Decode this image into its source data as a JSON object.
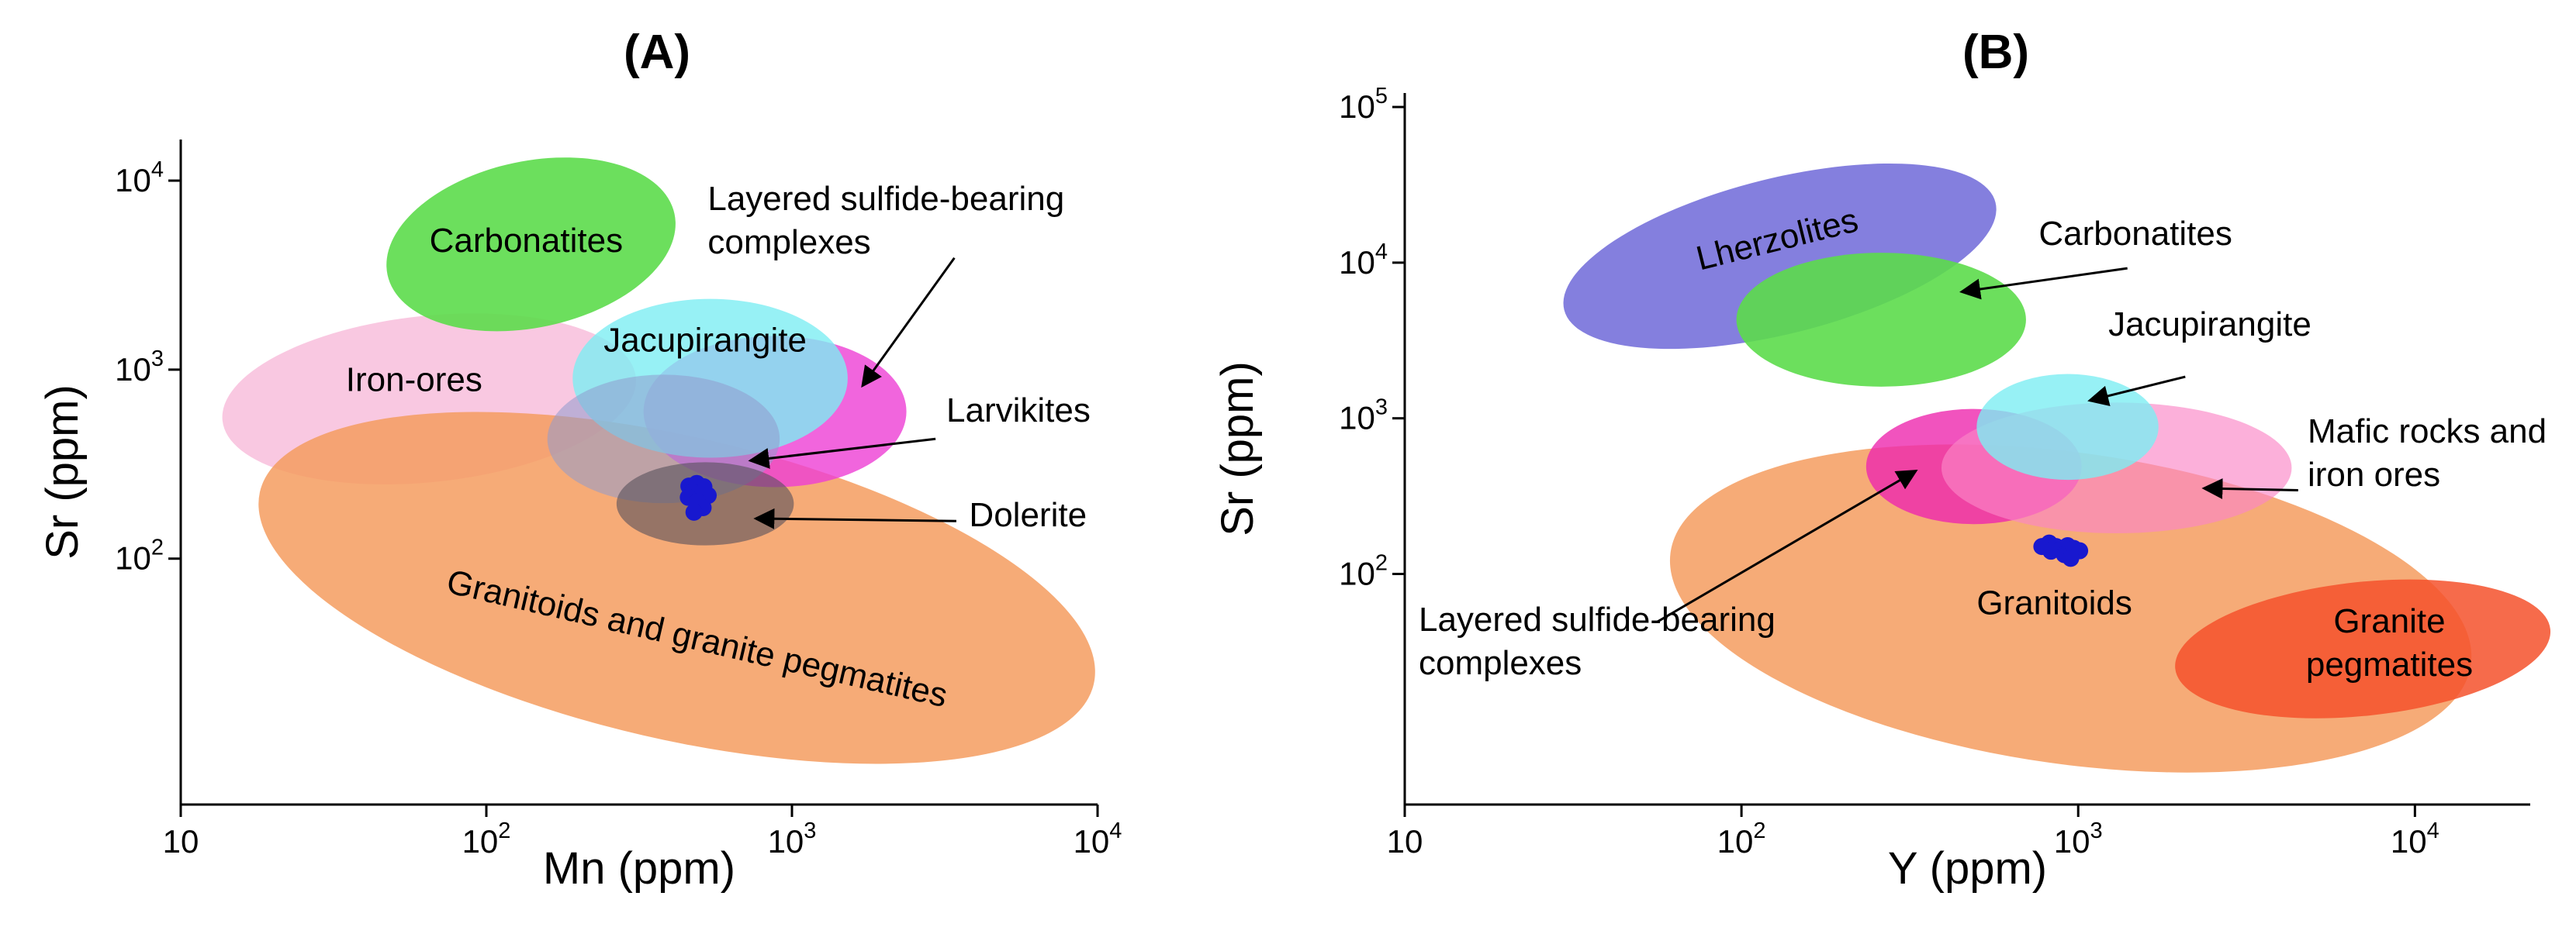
{
  "figure": {
    "background": "#ffffff",
    "point_color": "#1818cf"
  },
  "chart_data": [
    {
      "id": "A",
      "type": "scatter",
      "title": "(A)",
      "xlabel": "Mn (ppm)",
      "ylabel": "Sr (ppm)",
      "xscale": "log",
      "yscale": "log",
      "grid": false,
      "xlim": [
        10,
        10000
      ],
      "ylim": [
        5,
        16500
      ],
      "xticks": [
        {
          "value": 10,
          "base": "10",
          "sup": ""
        },
        {
          "value": 100,
          "base": "10",
          "sup": "2"
        },
        {
          "value": 1000,
          "base": "10",
          "sup": "3"
        },
        {
          "value": 10000,
          "base": "10",
          "sup": "4"
        }
      ],
      "yticks": [
        {
          "value": 100,
          "base": "10",
          "sup": "2"
        },
        {
          "value": 1000,
          "base": "10",
          "sup": "3"
        },
        {
          "value": 10000,
          "base": "10",
          "sup": "4"
        }
      ],
      "fields": [
        {
          "name": "Iron-ores",
          "slug": "iron-ores",
          "color": "#f7bada",
          "opacity": 0.8,
          "cx": 65,
          "cy": 700,
          "rx": 0.68,
          "ry": 0.44,
          "rot": -6
        },
        {
          "name": "Carbonatites",
          "slug": "carbonatites",
          "color": "#5cdc4b",
          "opacity": 0.9,
          "cx": 140,
          "cy": 4600,
          "rx": 0.48,
          "ry": 0.44,
          "rot": -12
        },
        {
          "name": "Granitoids and granite pegmatites",
          "slug": "granitoids-and-granite-pegmatites",
          "color": "#f59c5f",
          "opacity": 0.85,
          "cx": 420,
          "cy": 70,
          "rx": 1.4,
          "ry": 0.8,
          "rot": 13
        },
        {
          "name": "Layered sulfide-bearing complexes",
          "slug": "layered-sulfide-bearing-complexes",
          "color": "#ee3ed4",
          "opacity": 0.8,
          "cx": 880,
          "cy": 600,
          "rx": 0.43,
          "ry": 0.4,
          "rot": 0
        },
        {
          "name": "Jacupirangite",
          "slug": "jacupirangite",
          "color": "#7deef2",
          "opacity": 0.8,
          "cx": 540,
          "cy": 900,
          "rx": 0.45,
          "ry": 0.42,
          "rot": 0
        },
        {
          "name": "Larvikites",
          "slug": "larvikites",
          "color": "#8f9acd",
          "opacity": 0.55,
          "cx": 380,
          "cy": 430,
          "rx": 0.38,
          "ry": 0.34,
          "rot": 0
        },
        {
          "name": "Dolerite",
          "slug": "dolerite",
          "color": "#56505c",
          "opacity": 0.6,
          "cx": 520,
          "cy": 195,
          "rx": 0.29,
          "ry": 0.22,
          "rot": 0
        }
      ],
      "labels": [
        {
          "lines": [
            "Carbonatites"
          ],
          "x": 135,
          "y": 4200,
          "anchor": "middle"
        },
        {
          "lines": [
            "Iron-ores"
          ],
          "x": 58,
          "y": 770,
          "anchor": "middle"
        },
        {
          "lines": [
            "Jacupirangite"
          ],
          "x": 520,
          "y": 1250,
          "anchor": "middle"
        },
        {
          "lines": [
            "Granitoids and granite pegmatites"
          ],
          "x": 480,
          "y": 33,
          "anchor": "middle",
          "rot": 13
        },
        {
          "lines": [
            "Layered sulfide-bearing",
            "complexes"
          ],
          "x": 530,
          "y": 7000,
          "anchor": "start",
          "arrow": {
            "x1": 3400,
            "y1": 3900,
            "x2": 1700,
            "y2": 820
          }
        },
        {
          "lines": [
            "Larvikites"
          ],
          "x": 3200,
          "y": 530,
          "anchor": "start",
          "arrow": {
            "x1": 2950,
            "y1": 430,
            "x2": 730,
            "y2": 330
          }
        },
        {
          "lines": [
            "Dolerite"
          ],
          "x": 3800,
          "y": 148,
          "anchor": "start",
          "arrow": {
            "x1": 3450,
            "y1": 158,
            "x2": 760,
            "y2": 163
          }
        }
      ],
      "points": {
        "name": "samples",
        "color": "#1818cf",
        "r": 11,
        "data": [
          [
            460,
            242
          ],
          [
            488,
            250
          ],
          [
            515,
            240
          ],
          [
            472,
            226
          ],
          [
            502,
            221
          ],
          [
            458,
            211
          ],
          [
            532,
            216
          ],
          [
            490,
            200
          ],
          [
            512,
            186
          ],
          [
            478,
            176
          ]
        ]
      }
    },
    {
      "id": "B",
      "type": "scatter",
      "title": "(B)",
      "xlabel": "Y (ppm)",
      "ylabel": "Sr (ppm)",
      "xscale": "log",
      "yscale": "log",
      "grid": false,
      "xlim": [
        10,
        22000
      ],
      "ylim": [
        3.3,
        123000
      ],
      "xticks": [
        {
          "value": 10,
          "base": "10",
          "sup": ""
        },
        {
          "value": 100,
          "base": "10",
          "sup": "2"
        },
        {
          "value": 1000,
          "base": "10",
          "sup": "3"
        },
        {
          "value": 10000,
          "base": "10",
          "sup": "4"
        }
      ],
      "yticks": [
        {
          "value": 100,
          "base": "10",
          "sup": "2"
        },
        {
          "value": 1000,
          "base": "10",
          "sup": "3"
        },
        {
          "value": 10000,
          "base": "10",
          "sup": "4"
        },
        {
          "value": 100000,
          "base": "10",
          "sup": "5"
        }
      ],
      "fields": [
        {
          "name": "Lherzolites",
          "slug": "lherzolites",
          "color": "#6f68d8",
          "opacity": 0.85,
          "cx": 130,
          "cy": 11000,
          "rx": 0.66,
          "ry": 0.5,
          "rot": -14
        },
        {
          "name": "Carbonatites",
          "slug": "carbonatites",
          "color": "#5cdc4b",
          "opacity": 0.9,
          "cx": 260,
          "cy": 4300,
          "rx": 0.43,
          "ry": 0.43,
          "rot": 0
        },
        {
          "name": "Granitoids",
          "slug": "granitoids",
          "color": "#f59c5f",
          "opacity": 0.85,
          "cx": 950,
          "cy": 60,
          "rx": 1.2,
          "ry": 1.0,
          "rot": 8
        },
        {
          "name": "Granite pegmatites",
          "slug": "granite-pegmatites",
          "color": "#f4512b",
          "opacity": 0.85,
          "cx": 7000,
          "cy": 33,
          "rx": 0.56,
          "ry": 0.43,
          "rot": -6
        },
        {
          "name": "Layered sulfide-bearing complexes",
          "slug": "layered-sulfide-bearing-complexes",
          "color": "#ee28ae",
          "opacity": 0.8,
          "cx": 490,
          "cy": 490,
          "rx": 0.32,
          "ry": 0.37,
          "rot": 0
        },
        {
          "name": "Mafic rocks and iron ores",
          "slug": "mafic-rocks-and-iron-ores",
          "color": "#fb85c6",
          "opacity": 0.65,
          "cx": 1300,
          "cy": 480,
          "rx": 0.52,
          "ry": 0.42,
          "rot": 0
        },
        {
          "name": "Jacupirangite",
          "slug": "jacupirangite",
          "color": "#7deef2",
          "opacity": 0.8,
          "cx": 930,
          "cy": 880,
          "rx": 0.27,
          "ry": 0.34,
          "rot": 0
        }
      ],
      "labels": [
        {
          "lines": [
            "Lherzolites"
          ],
          "x": 130,
          "y": 12000,
          "anchor": "middle",
          "rot": -14
        },
        {
          "lines": [
            "Granitoids"
          ],
          "x": 850,
          "y": 55,
          "anchor": "middle"
        },
        {
          "lines": [
            "Granite",
            "pegmatites"
          ],
          "x": 8400,
          "y": 42,
          "anchor": "middle"
        },
        {
          "lines": [
            "Carbonatites"
          ],
          "x": 1480,
          "y": 13000,
          "anchor": "middle",
          "arrow": {
            "x1": 1400,
            "y1": 9200,
            "x2": 450,
            "y2": 6500
          }
        },
        {
          "lines": [
            "Jacupirangite"
          ],
          "x": 2460,
          "y": 3400,
          "anchor": "middle",
          "arrow": {
            "x1": 2080,
            "y1": 1850,
            "x2": 1080,
            "y2": 1300
          }
        },
        {
          "lines": [
            "Mafic rocks and",
            "iron ores"
          ],
          "x": 4800,
          "y": 700,
          "anchor": "start",
          "arrow": {
            "x1": 4500,
            "y1": 345,
            "x2": 2360,
            "y2": 355
          }
        },
        {
          "lines": [
            "Layered sulfide-bearing",
            "complexes"
          ],
          "x": 11,
          "y": 43,
          "anchor": "start",
          "arrow": {
            "x1": 56,
            "y1": 49,
            "x2": 330,
            "y2": 460
          }
        }
      ],
      "points": {
        "name": "samples",
        "color": "#1818cf",
        "r": 11,
        "data": [
          [
            780,
            150
          ],
          [
            820,
            158
          ],
          [
            860,
            150
          ],
          [
            830,
            140
          ],
          [
            890,
            144
          ],
          [
            930,
            152
          ],
          [
            910,
            133
          ],
          [
            970,
            146
          ],
          [
            1010,
            141
          ],
          [
            950,
            126
          ]
        ]
      }
    }
  ]
}
